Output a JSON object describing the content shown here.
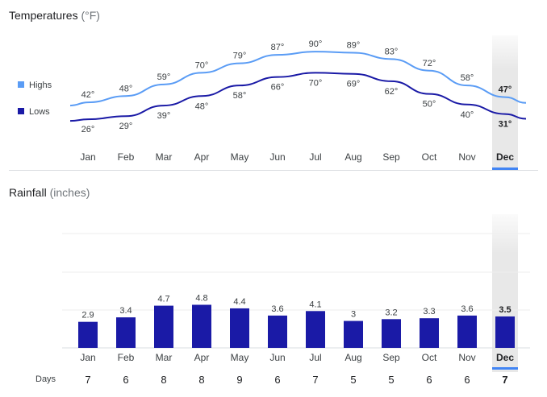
{
  "temperatures": {
    "title": "Temperatures",
    "unit": "(°F)",
    "legend": [
      {
        "label": "Highs",
        "color": "#5a9cf5"
      },
      {
        "label": "Lows",
        "color": "#1a1aa6"
      }
    ],
    "selected_month": "Dec"
  },
  "rainfall": {
    "title": "Rainfall",
    "unit": "(inches)",
    "days_label": "Days",
    "bar_color": "#1a1aa6",
    "selected_month": "Dec"
  },
  "chart_data": [
    {
      "type": "line",
      "title": "Temperatures (°F)",
      "categories": [
        "Jan",
        "Feb",
        "Mar",
        "Apr",
        "May",
        "Jun",
        "Jul",
        "Aug",
        "Sep",
        "Oct",
        "Nov",
        "Dec"
      ],
      "series": [
        {
          "name": "Highs",
          "values": [
            42,
            48,
            59,
            70,
            79,
            87,
            90,
            89,
            83,
            72,
            58,
            47
          ],
          "labels": [
            "42°",
            "48°",
            "59°",
            "70°",
            "79°",
            "87°",
            "90°",
            "89°",
            "83°",
            "72°",
            "58°",
            "47°"
          ]
        },
        {
          "name": "Lows",
          "values": [
            26,
            29,
            39,
            48,
            58,
            66,
            70,
            69,
            62,
            50,
            40,
            31
          ],
          "labels": [
            "26°",
            "29°",
            "39°",
            "48°",
            "58°",
            "66°",
            "70°",
            "69°",
            "62°",
            "50°",
            "40°",
            "31°"
          ]
        }
      ],
      "legend_position": "left",
      "grid": false
    },
    {
      "type": "bar",
      "title": "Rainfall (inches)",
      "categories": [
        "Jan",
        "Feb",
        "Mar",
        "Apr",
        "May",
        "Jun",
        "Jul",
        "Aug",
        "Sep",
        "Oct",
        "Nov",
        "Dec"
      ],
      "values": [
        2.9,
        3.4,
        4.7,
        4.8,
        4.4,
        3.6,
        4.1,
        3,
        3.2,
        3.3,
        3.6,
        3.5
      ],
      "value_labels": [
        "2.9",
        "3.4",
        "4.7",
        "4.8",
        "4.4",
        "3.6",
        "4.1",
        "3",
        "3.2",
        "3.3",
        "3.6",
        "3.5"
      ],
      "days": [
        "7",
        "6",
        "8",
        "8",
        "9",
        "6",
        "7",
        "5",
        "5",
        "6",
        "6",
        "7"
      ],
      "grid": true
    }
  ]
}
